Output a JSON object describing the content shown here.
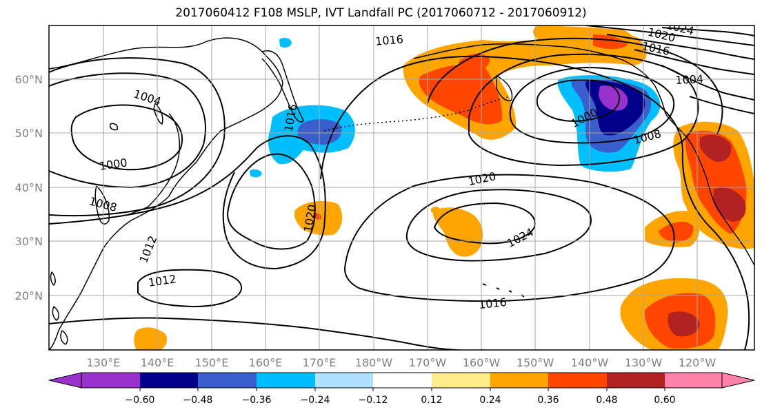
{
  "title": "2017060412 F108 MSLP, IVT Landfall PC (2017060712 - 2017060912)",
  "map": {
    "lon_labels": [
      "130°E",
      "140°E",
      "150°E",
      "160°E",
      "170°E",
      "180°W",
      "170°W",
      "160°W",
      "150°W",
      "140°W",
      "130°W",
      "120°W"
    ],
    "lat_labels": [
      "60°N",
      "50°N",
      "40°N",
      "30°N",
      "20°N"
    ],
    "grid": true,
    "contour_labels": [
      "1016",
      "1004",
      "1016",
      "1000",
      "1008",
      "1012",
      "1012",
      "1020",
      "1020",
      "1024",
      "1016",
      "1000",
      "1008",
      "1004",
      "1016",
      "1020",
      "1024"
    ]
  },
  "colorbar": {
    "tick_labels": [
      "−0.60",
      "−0.48",
      "−0.36",
      "−0.24",
      "−0.12",
      "0.12",
      "0.24",
      "0.36",
      "0.48",
      "0.60"
    ],
    "colors": [
      "#9932cc",
      "#00008b",
      "#3a5fcd",
      "#00bfff",
      "#b0e2ff",
      "#ffffff",
      "#ffec8b",
      "#ffa500",
      "#ff4500",
      "#b22222",
      "#ff82ab"
    ]
  },
  "fill_colors": {
    "light_orange": "#ffec8b",
    "orange": "#ffa500",
    "red_orange": "#ff4500",
    "dark_red": "#b22222",
    "light_blue": "#b0e2ff",
    "sky_blue": "#00bfff",
    "royal_blue": "#3a5fcd",
    "navy": "#00008b",
    "purple": "#9932cc"
  }
}
